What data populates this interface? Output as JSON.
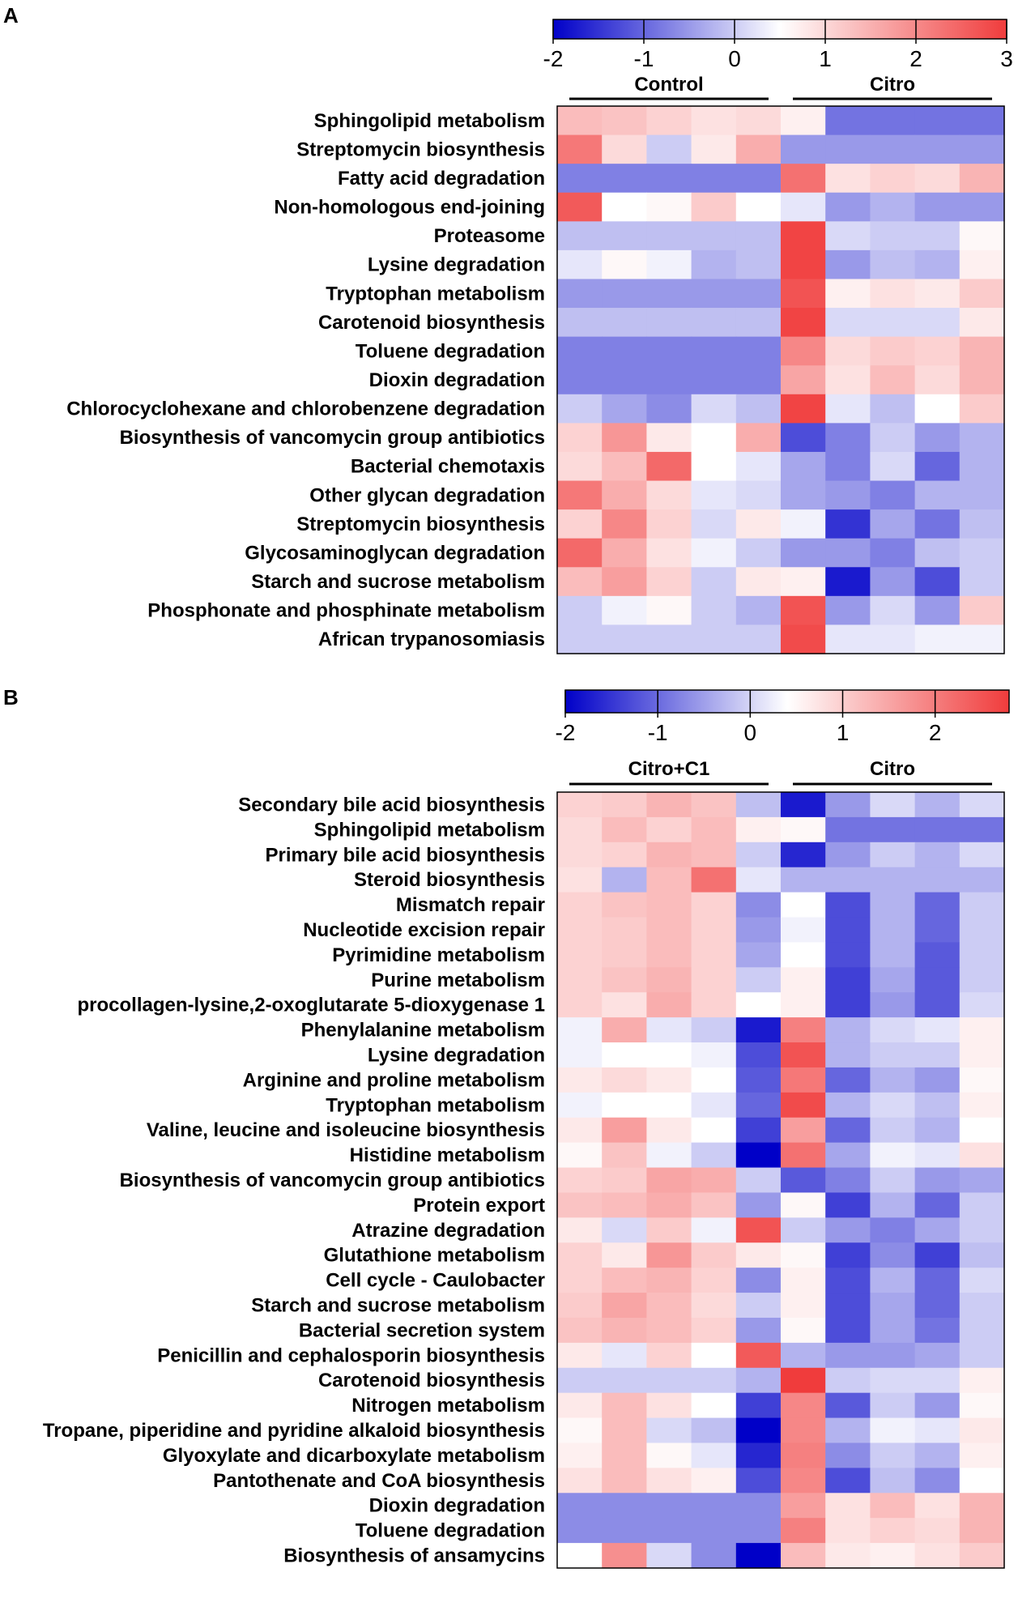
{
  "chart_data": [
    {
      "type": "heatmap",
      "panel_label": "A",
      "title": "",
      "colorbar": {
        "min": -2,
        "max": 3,
        "ticks": [
          -2,
          -1,
          0,
          1,
          2,
          3
        ]
      },
      "groups": [
        {
          "name": "Control",
          "n": 5
        },
        {
          "name": "Citro",
          "n": 5
        }
      ],
      "rows": [
        "Sphingolipid metabolism",
        "Streptomycin biosynthesis",
        "Fatty acid degradation",
        "Non-homologous end-joining",
        "Proteasome",
        "Lysine degradation",
        "Tryptophan metabolism",
        "Carotenoid biosynthesis",
        "Toluene degradation",
        "Dioxin degradation",
        "Chlorocyclohexane and chlorobenzene degradation",
        "Biosynthesis of vancomycin group antibiotics",
        "Bacterial chemotaxis",
        "Other glycan degradation",
        "Streptomycin biosynthesis",
        "Glycosaminoglycan degradation",
        "Starch and sucrose metabolism",
        "Phosphonate and phosphinate metabolism",
        "African trypanosomiasis"
      ],
      "values": [
        [
          0.9,
          0.8,
          0.6,
          0.4,
          0.5,
          0.2,
          -1.1,
          -1.1,
          -1.1,
          -1.1
        ],
        [
          1.8,
          0.5,
          -0.4,
          0.3,
          1.1,
          -0.8,
          -0.8,
          -0.8,
          -0.8,
          -0.8
        ],
        [
          -1.0,
          -1.0,
          -1.0,
          -1.0,
          -1.0,
          1.9,
          0.4,
          0.6,
          0.5,
          1.0
        ],
        [
          2.2,
          0.0,
          0.1,
          0.7,
          0.0,
          -0.2,
          -0.8,
          -0.6,
          -0.8,
          -0.8
        ],
        [
          -0.5,
          -0.5,
          -0.5,
          -0.5,
          -0.5,
          2.5,
          -0.3,
          -0.4,
          -0.4,
          0.1
        ],
        [
          -0.2,
          0.1,
          -0.1,
          -0.6,
          -0.5,
          2.5,
          -0.8,
          -0.5,
          -0.6,
          0.2
        ],
        [
          -0.8,
          -0.8,
          -0.8,
          -0.8,
          -0.8,
          2.3,
          0.2,
          0.4,
          0.3,
          0.7
        ],
        [
          -0.5,
          -0.5,
          -0.5,
          -0.5,
          -0.5,
          2.5,
          -0.3,
          -0.3,
          -0.3,
          0.3
        ],
        [
          -1.0,
          -1.0,
          -1.0,
          -1.0,
          -1.0,
          1.6,
          0.5,
          0.7,
          0.6,
          1.0
        ],
        [
          -1.0,
          -1.0,
          -1.0,
          -1.0,
          -1.0,
          1.2,
          0.4,
          0.9,
          0.5,
          1.0
        ],
        [
          -0.4,
          -0.7,
          -0.9,
          -0.3,
          -0.5,
          2.5,
          -0.2,
          -0.5,
          0.0,
          0.7
        ],
        [
          0.6,
          1.4,
          0.3,
          0.0,
          1.1,
          -1.4,
          -1.0,
          -0.4,
          -0.8,
          -0.6
        ],
        [
          0.5,
          0.9,
          2.0,
          0.0,
          -0.2,
          -0.7,
          -1.0,
          -0.3,
          -1.2,
          -0.6
        ],
        [
          1.8,
          1.1,
          0.5,
          -0.2,
          -0.3,
          -0.7,
          -0.8,
          -1.0,
          -0.6,
          -0.6
        ],
        [
          0.6,
          1.6,
          0.6,
          -0.3,
          0.3,
          -0.1,
          -1.6,
          -0.7,
          -1.1,
          -0.5
        ],
        [
          2.0,
          1.1,
          0.4,
          -0.1,
          -0.4,
          -0.8,
          -0.8,
          -1.0,
          -0.5,
          -0.4
        ],
        [
          0.9,
          1.3,
          0.6,
          -0.4,
          0.3,
          0.2,
          -1.8,
          -0.8,
          -1.4,
          -0.4
        ],
        [
          -0.4,
          -0.1,
          0.1,
          -0.4,
          -0.6,
          2.3,
          -0.8,
          -0.3,
          -0.8,
          0.7
        ],
        [
          -0.4,
          -0.4,
          -0.4,
          -0.4,
          -0.4,
          2.4,
          -0.2,
          -0.2,
          -0.1,
          -0.1
        ]
      ]
    },
    {
      "type": "heatmap",
      "panel_label": "B",
      "title": "",
      "colorbar": {
        "min": -2,
        "max": 2.8,
        "ticks": [
          -2,
          -1,
          0,
          1,
          2
        ]
      },
      "groups": [
        {
          "name": "Citro+C1",
          "n": 5
        },
        {
          "name": "Citro",
          "n": 5
        }
      ],
      "rows": [
        "Secondary bile acid biosynthesis",
        "Sphingolipid metabolism",
        "Primary bile acid biosynthesis",
        "Steroid biosynthesis",
        "Mismatch repair",
        "Nucleotide excision repair",
        "Pyrimidine metabolism",
        "Purine metabolism",
        "procollagen-lysine,2-oxoglutarate 5-dioxygenase 1",
        "Phenylalanine metabolism",
        "Lysine degradation",
        "Arginine and proline metabolism",
        "Tryptophan metabolism",
        "Valine, leucine and isoleucine biosynthesis",
        "Histidine metabolism",
        "Biosynthesis of vancomycin group antibiotics",
        "Protein export",
        "Atrazine degradation",
        "Glutathione metabolism",
        "Cell cycle - Caulobacter",
        "Starch and sucrose metabolism",
        "Bacterial secretion system",
        "Penicillin and cephalosporin biosynthesis",
        "Carotenoid biosynthesis",
        "Nitrogen metabolism",
        "Tropane, piperidine and pyridine alkaloid biosynthesis",
        "Glyoxylate and dicarboxylate metabolism",
        "Pantothenate and CoA biosynthesis",
        "Dioxin degradation",
        "Toluene degradation",
        "Biosynthesis of ansamycins"
      ],
      "values": [
        [
          0.6,
          0.7,
          1.0,
          0.8,
          -0.5,
          -1.8,
          -0.8,
          -0.3,
          -0.6,
          -0.3
        ],
        [
          0.5,
          0.9,
          0.6,
          0.9,
          0.2,
          0.1,
          -1.1,
          -1.1,
          -1.1,
          -1.1
        ],
        [
          0.5,
          0.6,
          1.0,
          0.9,
          -0.4,
          -1.7,
          -0.8,
          -0.4,
          -0.6,
          -0.3
        ],
        [
          0.4,
          -0.6,
          0.9,
          1.9,
          -0.2,
          -0.6,
          -0.6,
          -0.6,
          -0.6,
          -0.6
        ],
        [
          0.6,
          0.8,
          0.9,
          0.6,
          -0.9,
          0.0,
          -1.4,
          -0.6,
          -1.2,
          -0.4
        ],
        [
          0.6,
          0.7,
          0.9,
          0.6,
          -0.8,
          -0.1,
          -1.4,
          -0.6,
          -1.2,
          -0.4
        ],
        [
          0.6,
          0.7,
          0.9,
          0.6,
          -0.7,
          0.0,
          -1.4,
          -0.6,
          -1.3,
          -0.4
        ],
        [
          0.6,
          0.8,
          1.0,
          0.6,
          -0.4,
          0.2,
          -1.5,
          -0.7,
          -1.3,
          -0.4
        ],
        [
          0.6,
          0.4,
          1.1,
          0.6,
          0.0,
          0.2,
          -1.5,
          -0.8,
          -1.3,
          -0.3
        ],
        [
          -0.1,
          1.1,
          -0.2,
          -0.4,
          -1.8,
          1.7,
          -0.6,
          -0.3,
          -0.2,
          0.2
        ],
        [
          -0.1,
          0.0,
          0.0,
          -0.1,
          -1.4,
          2.3,
          -0.6,
          -0.4,
          -0.4,
          0.2
        ],
        [
          0.3,
          0.5,
          0.3,
          0.0,
          -1.3,
          1.8,
          -1.2,
          -0.6,
          -0.8,
          0.1
        ],
        [
          -0.1,
          0.0,
          0.0,
          -0.2,
          -1.2,
          2.4,
          -0.6,
          -0.3,
          -0.5,
          0.2
        ],
        [
          0.3,
          1.3,
          0.3,
          0.0,
          -1.5,
          1.3,
          -1.2,
          -0.4,
          -0.6,
          0.0
        ],
        [
          0.1,
          0.8,
          -0.1,
          -0.4,
          -2.0,
          1.9,
          -0.7,
          -0.1,
          -0.2,
          0.4
        ],
        [
          0.6,
          0.7,
          1.2,
          1.1,
          -0.4,
          -1.3,
          -1.0,
          -0.4,
          -0.8,
          -0.7
        ],
        [
          0.8,
          0.9,
          1.1,
          0.8,
          -0.8,
          0.1,
          -1.5,
          -0.6,
          -1.2,
          -0.4
        ],
        [
          0.3,
          -0.3,
          0.7,
          -0.1,
          2.3,
          -0.4,
          -0.8,
          -1.0,
          -0.7,
          -0.4
        ],
        [
          0.6,
          0.3,
          1.4,
          0.7,
          0.3,
          0.1,
          -1.5,
          -0.9,
          -1.5,
          -0.5
        ],
        [
          0.6,
          0.9,
          1.0,
          0.6,
          -0.9,
          0.2,
          -1.4,
          -0.6,
          -1.2,
          -0.3
        ],
        [
          0.7,
          1.2,
          0.9,
          0.5,
          -0.4,
          0.2,
          -1.4,
          -0.7,
          -1.2,
          -0.4
        ],
        [
          0.8,
          1.0,
          0.9,
          0.6,
          -0.8,
          0.1,
          -1.4,
          -0.7,
          -1.1,
          -0.4
        ],
        [
          0.3,
          -0.2,
          0.6,
          0.0,
          2.2,
          -0.6,
          -0.8,
          -0.8,
          -0.7,
          -0.4
        ],
        [
          -0.4,
          -0.4,
          -0.4,
          -0.4,
          -0.6,
          2.6,
          -0.4,
          -0.3,
          -0.3,
          0.2
        ],
        [
          0.3,
          0.9,
          0.4,
          0.0,
          -1.5,
          1.6,
          -1.3,
          -0.4,
          -0.8,
          0.1
        ],
        [
          0.1,
          0.9,
          -0.3,
          -0.5,
          -2.0,
          1.6,
          -0.6,
          -0.1,
          -0.2,
          0.3
        ],
        [
          0.2,
          0.9,
          0.1,
          -0.2,
          -1.7,
          1.7,
          -0.9,
          -0.4,
          -0.6,
          0.2
        ],
        [
          0.4,
          0.9,
          0.4,
          0.2,
          -1.4,
          1.6,
          -1.4,
          -0.5,
          -0.9,
          0.0
        ],
        [
          -0.9,
          -0.9,
          -0.9,
          -0.9,
          -0.9,
          1.3,
          0.4,
          0.9,
          0.4,
          1.0
        ],
        [
          -0.9,
          -0.9,
          -0.9,
          -0.9,
          -0.9,
          1.7,
          0.4,
          0.6,
          0.5,
          1.0
        ],
        [
          0.0,
          1.5,
          -0.3,
          -0.9,
          -2.0,
          0.9,
          0.3,
          0.2,
          0.4,
          0.7
        ]
      ]
    }
  ]
}
